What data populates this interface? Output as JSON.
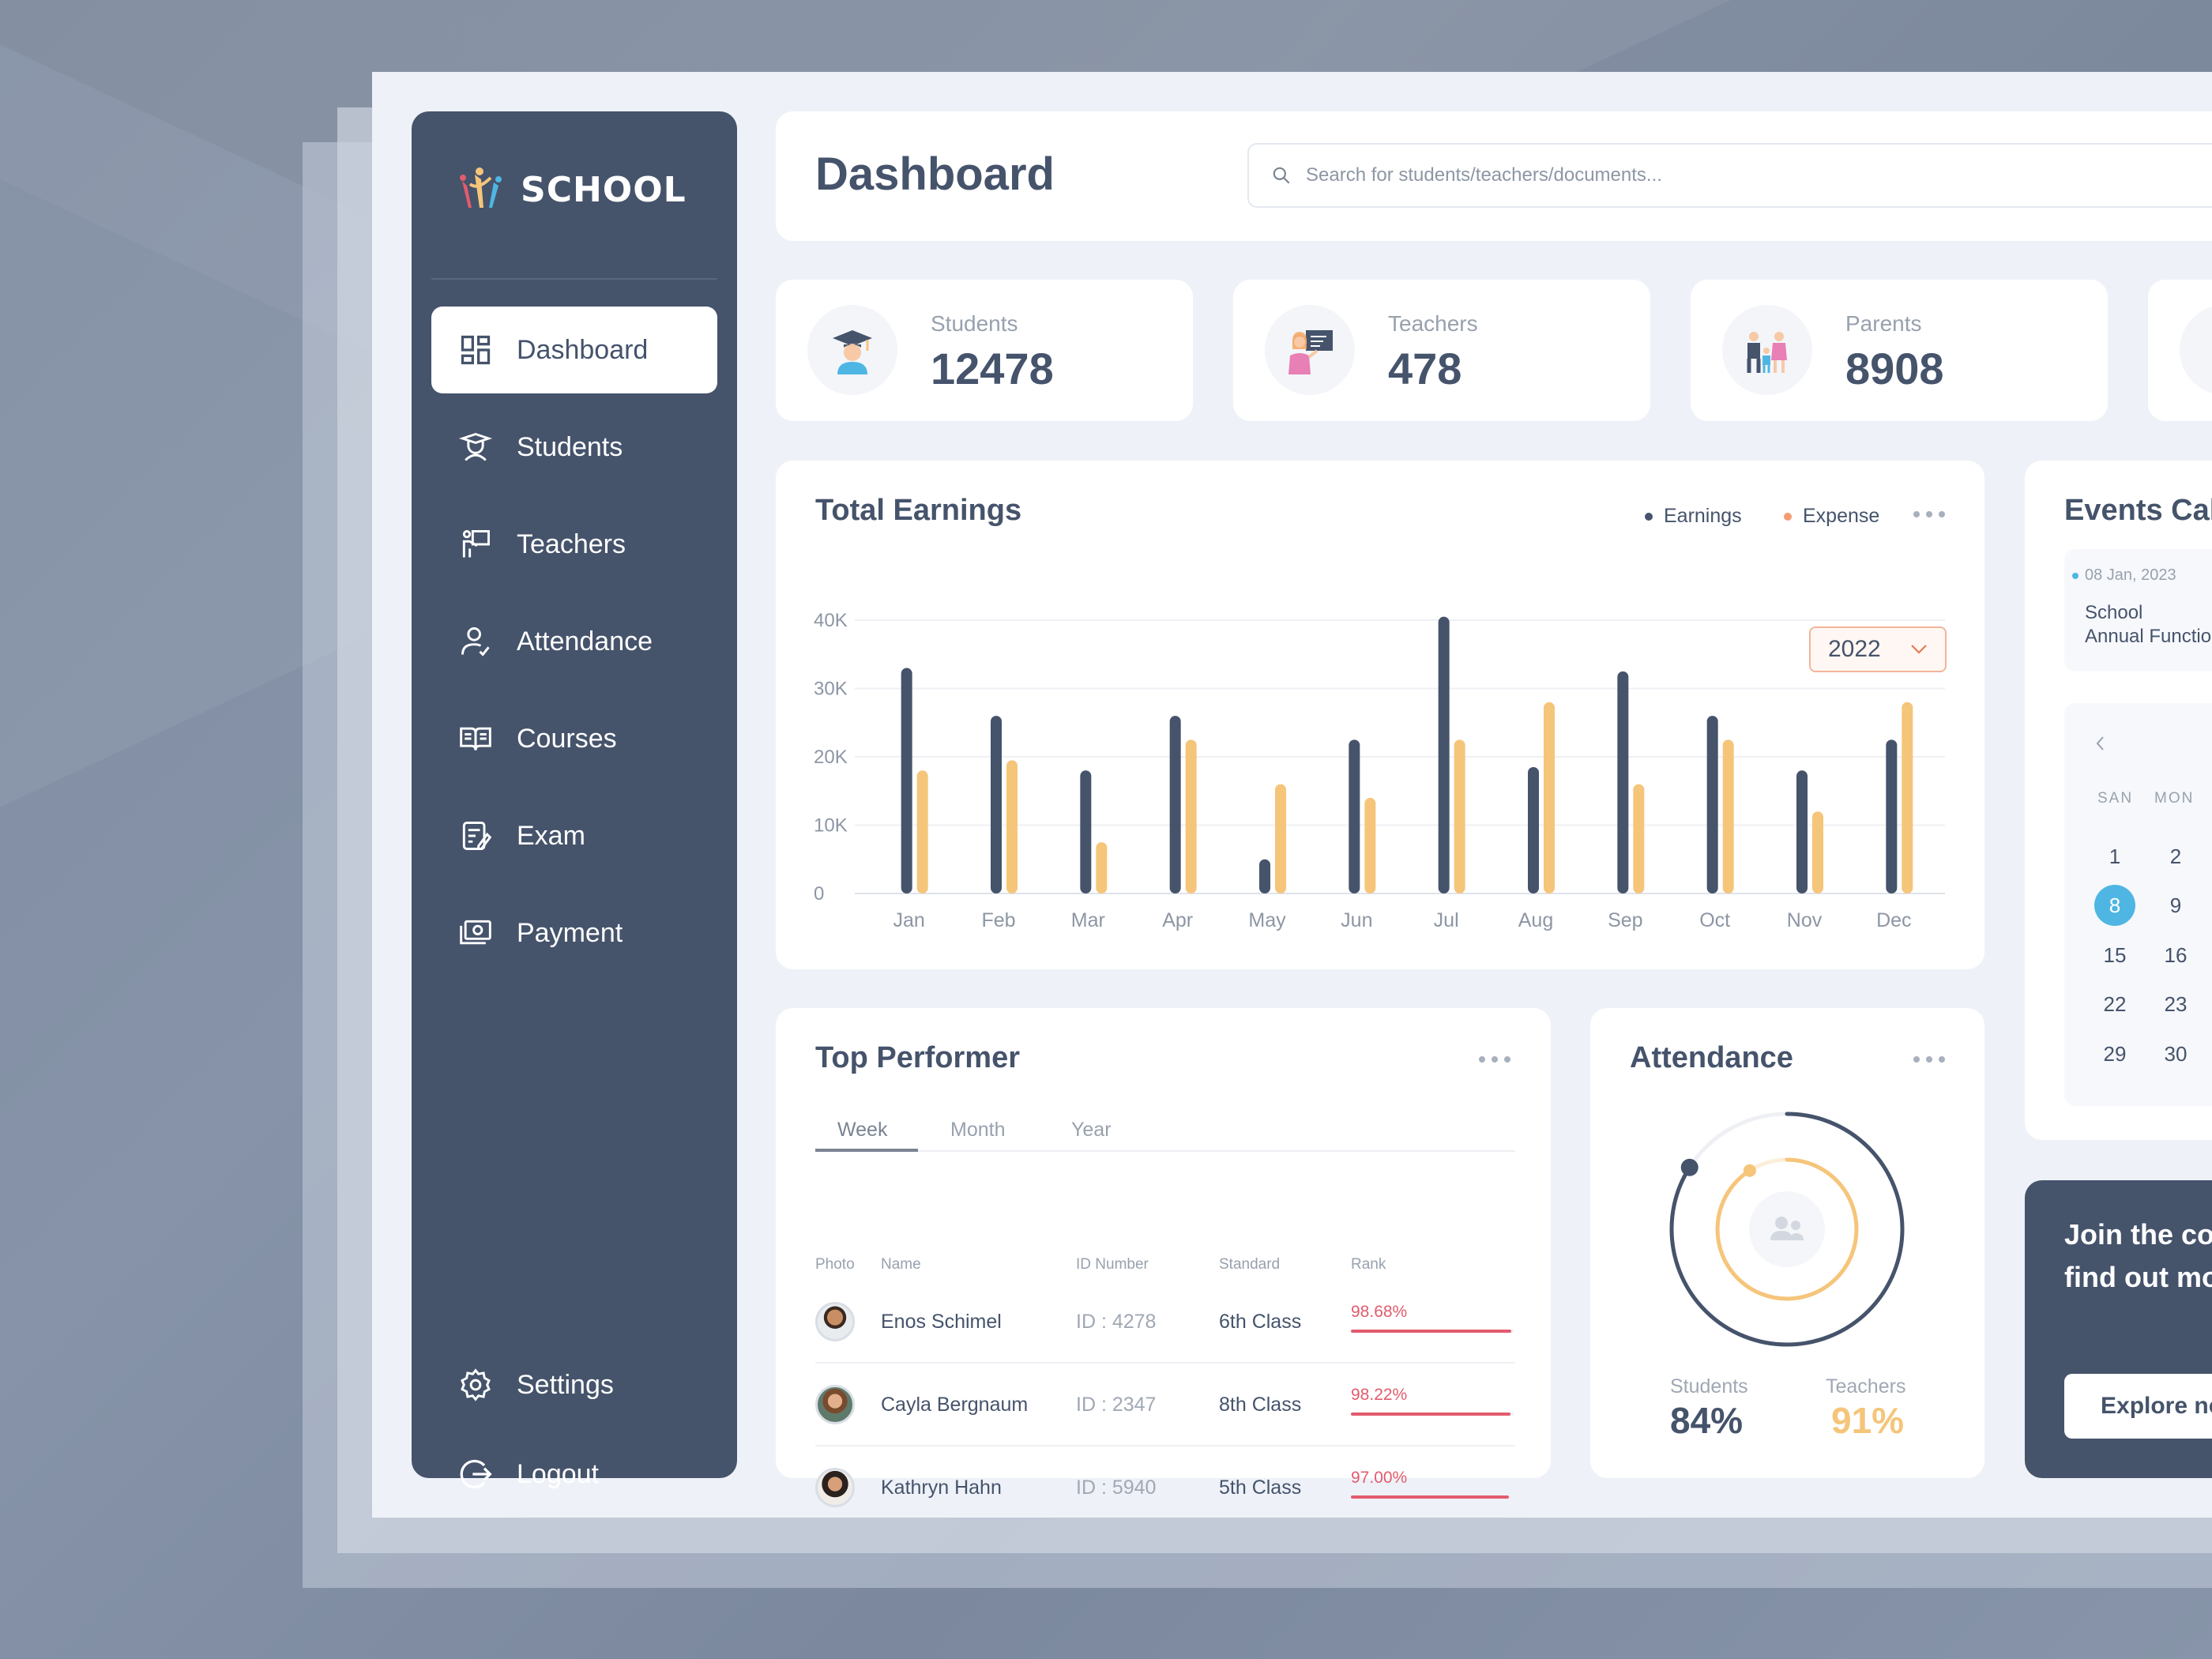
{
  "app": {
    "brand": "SCHOOL"
  },
  "sidebar": {
    "items": [
      {
        "label": "Dashboard",
        "icon": "dashboard-icon",
        "active": true
      },
      {
        "label": "Students",
        "icon": "student-icon"
      },
      {
        "label": "Teachers",
        "icon": "teacher-icon"
      },
      {
        "label": "Attendance",
        "icon": "attendance-icon"
      },
      {
        "label": "Courses",
        "icon": "book-icon"
      },
      {
        "label": "Exam",
        "icon": "exam-icon"
      },
      {
        "label": "Payment",
        "icon": "payment-icon"
      }
    ],
    "bottom": [
      {
        "label": "Settings",
        "icon": "gear-icon"
      },
      {
        "label": "Logout",
        "icon": "logout-icon"
      }
    ]
  },
  "header": {
    "title": "Dashboard",
    "search_placeholder": "Search for students/teachers/documents..."
  },
  "stats": [
    {
      "label": "Students",
      "value": "12478",
      "icon": "graduate-icon"
    },
    {
      "label": "Teachers",
      "value": "478",
      "icon": "teacher-board-icon"
    },
    {
      "label": "Parents",
      "value": "8908",
      "icon": "family-icon"
    }
  ],
  "earnings": {
    "title": "Total Earnings",
    "legend": {
      "earnings": "Earnings",
      "expense": "Expense"
    },
    "year": "2022"
  },
  "chart_data": {
    "type": "bar",
    "title": "Total Earnings",
    "categories": [
      "Jan",
      "Feb",
      "Mar",
      "Apr",
      "May",
      "Jun",
      "Jul",
      "Aug",
      "Sep",
      "Oct",
      "Nov",
      "Dec"
    ],
    "series": [
      {
        "name": "Earnings",
        "color": "#45536b",
        "values": [
          33,
          26,
          18,
          26,
          5,
          22.5,
          40.5,
          18.5,
          32.5,
          26,
          18,
          22.5
        ]
      },
      {
        "name": "Expense",
        "color": "#f5c57a",
        "values": [
          18,
          19.5,
          7.5,
          22.5,
          16,
          14,
          22.5,
          28,
          16,
          22.5,
          12,
          28
        ]
      }
    ],
    "yticks": [
      "0",
      "10K",
      "20K",
      "30K",
      "40K"
    ],
    "ylim": [
      0,
      40
    ],
    "grid": true,
    "legend_position": "top-right"
  },
  "top_performer": {
    "title": "Top Performer",
    "tabs": [
      "Week",
      "Month",
      "Year"
    ],
    "columns": [
      "Photo",
      "Name",
      "ID Number",
      "Standard",
      "Rank"
    ],
    "rows": [
      {
        "name": "Enos Schimel",
        "id": "ID : 4278",
        "standard": "6th Class",
        "rank": "98.68%",
        "rank_value": 98.68
      },
      {
        "name": "Cayla Bergnaum",
        "id": "ID : 2347",
        "standard": "8th Class",
        "rank": "98.22%",
        "rank_value": 98.22
      },
      {
        "name": "Kathryn Hahn",
        "id": "ID : 5940",
        "standard": "5th Class",
        "rank": "97.00%",
        "rank_value": 97.0
      }
    ]
  },
  "attendance": {
    "title": "Attendance",
    "students_label": "Students",
    "students_value": "84%",
    "teachers_label": "Teachers",
    "teachers_value": "91%",
    "students_fraction": 0.84,
    "teachers_fraction": 0.91
  },
  "events": {
    "title": "Events Calendar",
    "item_date": "08 Jan, 2023",
    "item_title": "School\nAnnual Function",
    "days_of_week": [
      "SAN",
      "MON"
    ],
    "days": [
      [
        "1",
        "2"
      ],
      [
        "8",
        "9"
      ],
      [
        "15",
        "16"
      ],
      [
        "22",
        "23"
      ],
      [
        "29",
        "30"
      ]
    ],
    "selected_day": "8"
  },
  "join": {
    "text": "Join the community and\nfind out more",
    "button": "Explore now"
  },
  "colors": {
    "primary": "#45536b",
    "expense": "#f5c57a",
    "accent": "#4fb6e3",
    "rank": "#e35b6d"
  }
}
